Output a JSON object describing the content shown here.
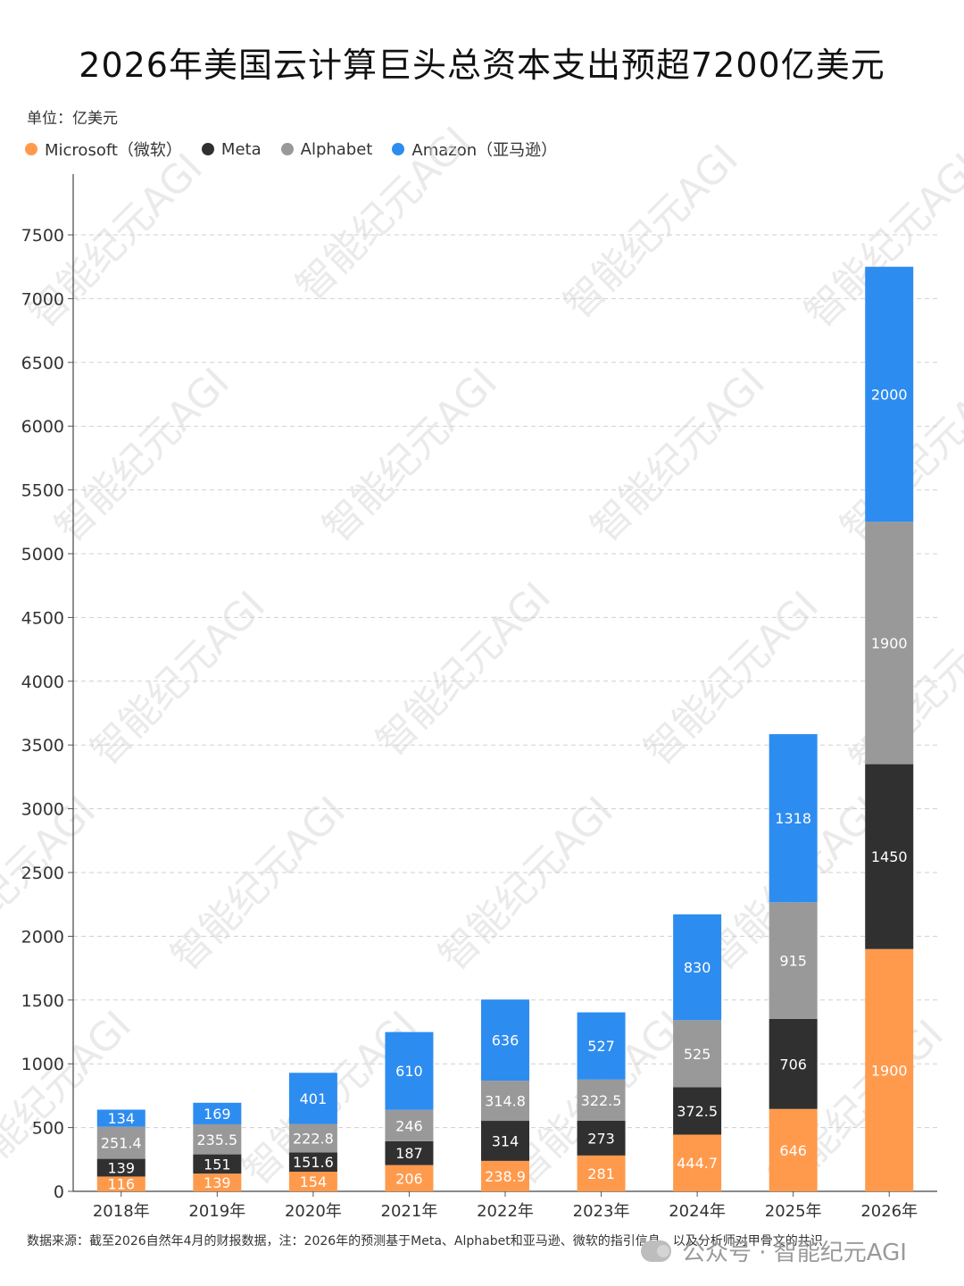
{
  "title": "2026年美国云计算巨头总资本支出预超7200亿美元",
  "unit": "单位：亿美元",
  "legend": [
    {
      "name": "Microsoft（微软）",
      "color": "#FF9A4D"
    },
    {
      "name": "Meta",
      "color": "#303030"
    },
    {
      "name": "Alphabet",
      "color": "#999999"
    },
    {
      "name": "Amazon（亚马逊）",
      "color": "#2D8CF0"
    }
  ],
  "chart_data": {
    "type": "bar",
    "stacked": true,
    "categories": [
      "2018年",
      "2019年",
      "2020年",
      "2021年",
      "2022年",
      "2023年",
      "2024年",
      "2025年",
      "2026年"
    ],
    "series": [
      {
        "name": "Microsoft（微软）",
        "color": "#FF9A4D",
        "values": [
          116,
          139,
          154,
          206,
          238.9,
          281,
          444.7,
          646,
          1900
        ],
        "labels": [
          "116",
          "139",
          "154",
          "206",
          "238.9",
          "281",
          "444.7",
          "646",
          "1900"
        ]
      },
      {
        "name": "Meta",
        "color": "#303030",
        "values": [
          139,
          151,
          151.6,
          187,
          314,
          273,
          372.5,
          706,
          1450
        ],
        "labels": [
          "139",
          "151",
          "151.6",
          "187",
          "314",
          "273",
          "372.5",
          "706",
          "1450"
        ]
      },
      {
        "name": "Alphabet",
        "color": "#999999",
        "values": [
          251.4,
          235.5,
          222.8,
          246,
          314.8,
          322.5,
          525,
          915,
          1900
        ],
        "labels": [
          "251.4",
          "235.5",
          "222.8",
          "246",
          "314.8",
          "322.5",
          "525",
          "915",
          "1900"
        ]
      },
      {
        "name": "Amazon（亚马逊）",
        "color": "#2D8CF0",
        "values": [
          134,
          169,
          401,
          610,
          636,
          527,
          830,
          1318,
          2000
        ],
        "labels": [
          "134",
          "169",
          "401",
          "610",
          "636",
          "527",
          "830",
          "1318",
          "2000"
        ]
      }
    ],
    "ylim": [
      0,
      7500
    ],
    "yticks": [
      0,
      500,
      1000,
      1500,
      2000,
      2500,
      3000,
      3500,
      4000,
      4500,
      5000,
      5500,
      6000,
      6500,
      7000,
      7500
    ],
    "grid": true,
    "legend_position": "top-left"
  },
  "source": "数据来源：截至2026自然年4月的财报数据，注：2026年的预测基于Meta、Alphabet和亚马逊、微软的指引信息，以及分析师对甲骨文的共识",
  "watermark": "智能纪元AGI",
  "footer_watermark": "公众号 · 智能纪元AGI"
}
